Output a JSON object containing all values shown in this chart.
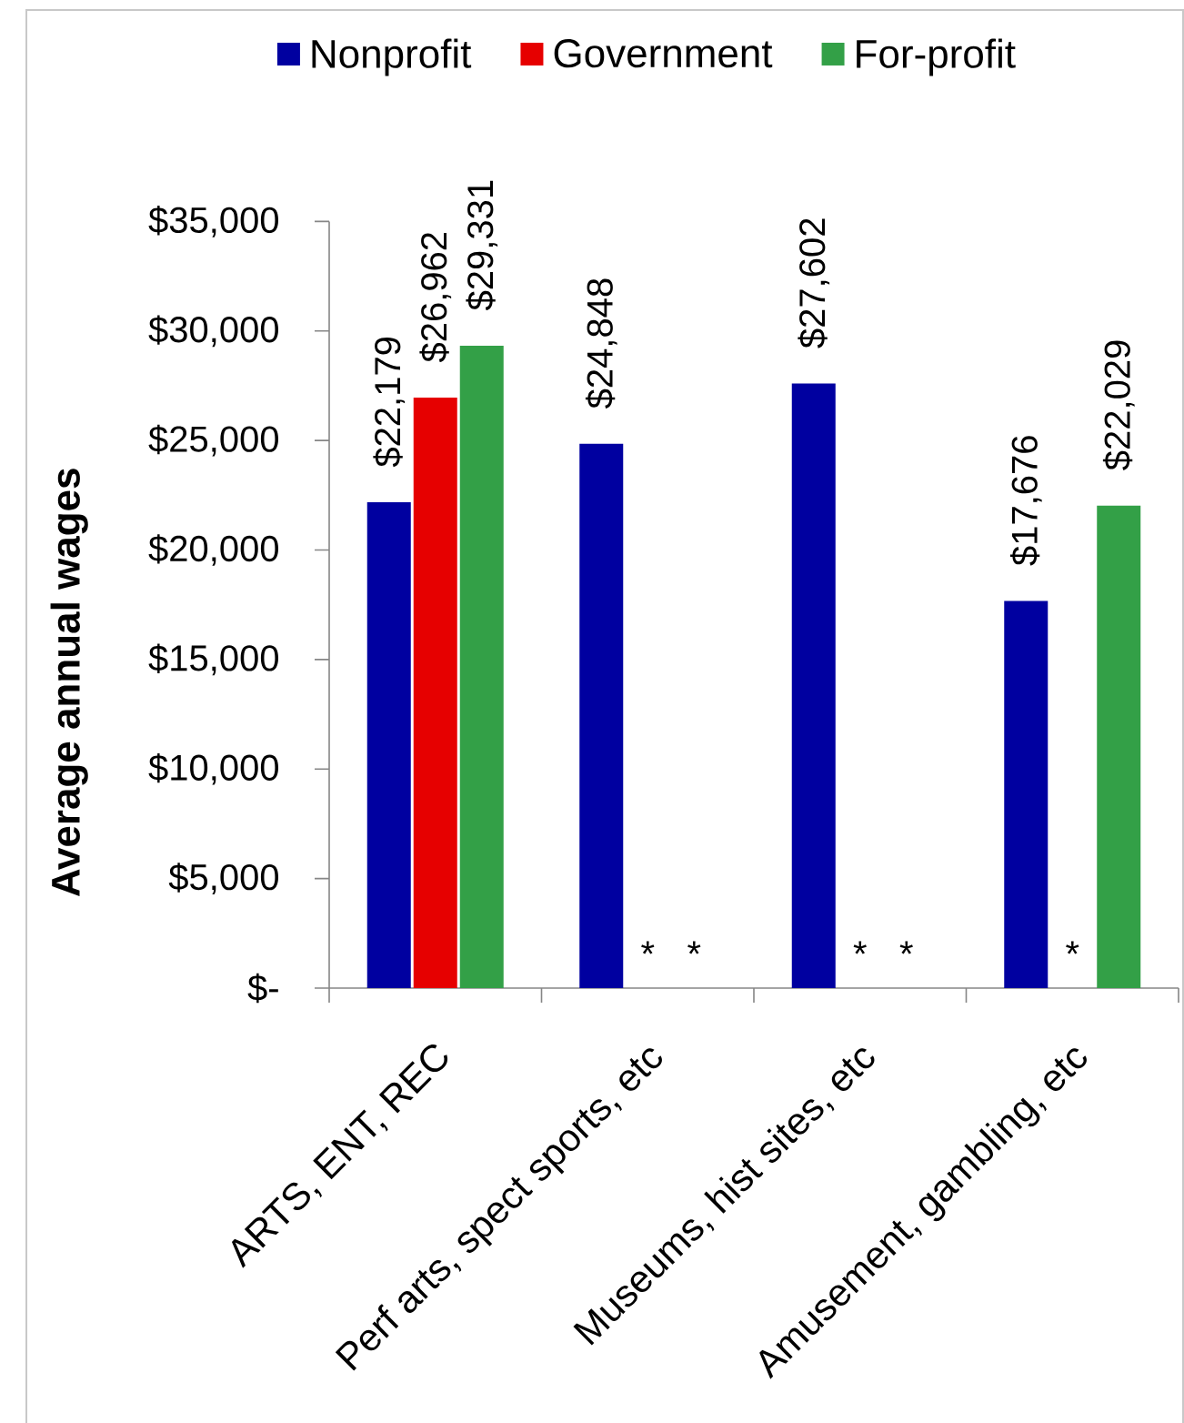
{
  "chart_data": {
    "type": "bar",
    "ylabel": "Average annual wages",
    "categories": [
      "ARTS, ENT, REC",
      "Perf arts, spect sports, etc",
      "Museums, hist sites, etc",
      "Amusement, gambling, etc"
    ],
    "series": [
      {
        "name": "Nonprofit",
        "color": "#0000a0",
        "values": [
          22179,
          24848,
          27602,
          17676
        ],
        "value_labels": [
          "$22,179",
          "$24,848",
          "$27,602",
          "$17,676"
        ]
      },
      {
        "name": "Government",
        "color": "#e60000",
        "values": [
          26962,
          null,
          null,
          null
        ],
        "value_labels": [
          "$26,962",
          "*",
          "*",
          "*"
        ]
      },
      {
        "name": "For-profit",
        "color": "#33a047",
        "values": [
          29331,
          null,
          null,
          22029
        ],
        "value_labels": [
          "$29,331",
          "*",
          "*",
          "$22,029"
        ]
      }
    ],
    "ylim": [
      0,
      35000
    ],
    "yticks": [
      {
        "value": 0,
        "label": "$-"
      },
      {
        "value": 5000,
        "label": "$5,000"
      },
      {
        "value": 10000,
        "label": "$10,000"
      },
      {
        "value": 15000,
        "label": "$15,000"
      },
      {
        "value": 20000,
        "label": "$20,000"
      },
      {
        "value": 25000,
        "label": "$25,000"
      },
      {
        "value": 30000,
        "label": "$30,000"
      },
      {
        "value": 35000,
        "label": "$35,000"
      }
    ],
    "legend": "top"
  }
}
